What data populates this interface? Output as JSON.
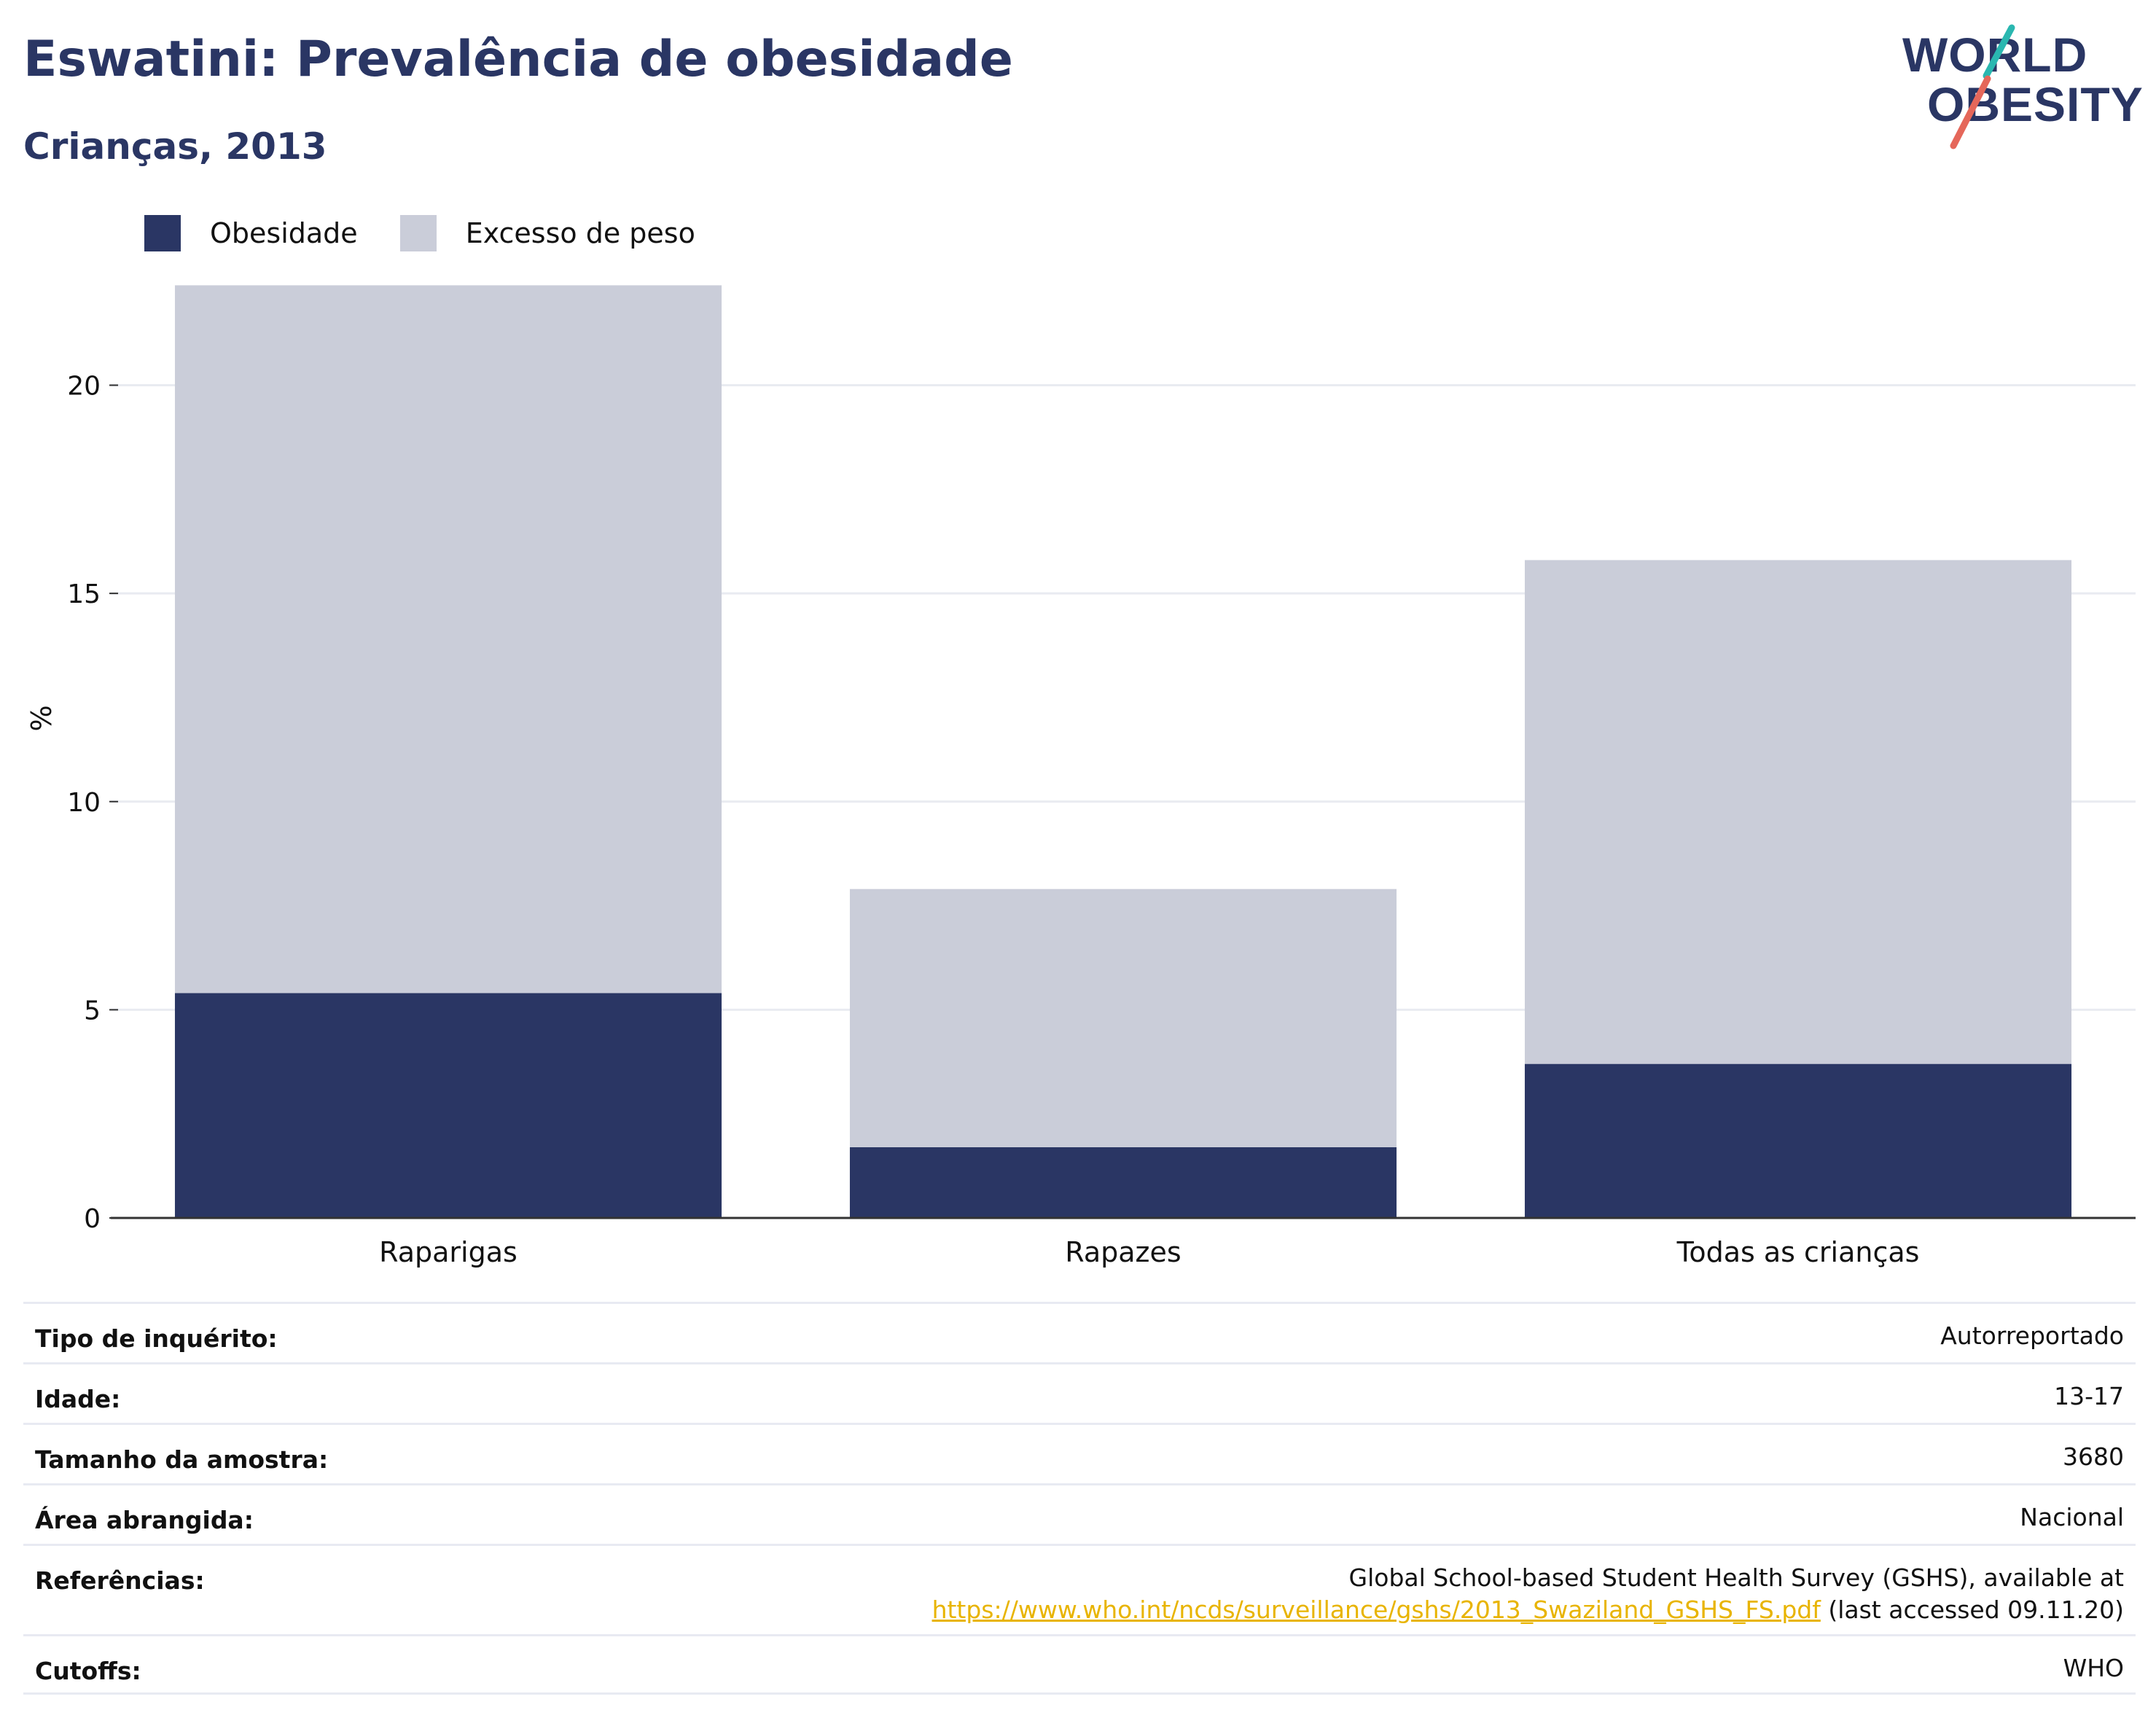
{
  "header": {
    "title": "Eswatini: Prevalência de obesidade",
    "subtitle": "Crianças, 2013"
  },
  "logo": {
    "line1": "WORLD",
    "line2": "OBESITY",
    "slash_color_top": "#2ab7b0",
    "slash_color_bottom": "#e5675a"
  },
  "legend": [
    {
      "label": "Obesidade",
      "color": "#2a3664"
    },
    {
      "label": "Excesso de peso",
      "color": "#cacdd9"
    }
  ],
  "chart_data": {
    "type": "bar",
    "stacked": true,
    "categories": [
      "Raparigas",
      "Rapazes",
      "Todas as crianças"
    ],
    "series": [
      {
        "name": "Obesidade",
        "values": [
          5.4,
          1.7,
          3.7
        ],
        "color": "#2a3664"
      },
      {
        "name": "Excesso de peso",
        "values": [
          17.0,
          6.2,
          12.1
        ],
        "color": "#cacdd9"
      }
    ],
    "ylabel": "%",
    "ylim": [
      0,
      24
    ],
    "yticks": [
      0,
      5,
      10,
      15,
      20
    ],
    "grid": true,
    "legend_position": "top-left"
  },
  "info": {
    "survey_type": {
      "label": "Tipo de inquérito:",
      "value": "Autorreportado"
    },
    "age": {
      "label": "Idade:",
      "value": "13-17"
    },
    "sample_size": {
      "label": "Tamanho da amostra:",
      "value": "3680"
    },
    "area": {
      "label": "Área abrangida:",
      "value": "Nacional"
    },
    "references": {
      "label": "Referências:",
      "text": "Global School-based Student Health Survey (GSHS), available at",
      "url": "https://www.who.int/ncds/surveillance/gshs/2013_Swaziland_GSHS_FS.pdf",
      "suffix": " (last accessed 09.11.20)"
    },
    "cutoffs": {
      "label": "Cutoffs:",
      "value": "WHO"
    }
  }
}
